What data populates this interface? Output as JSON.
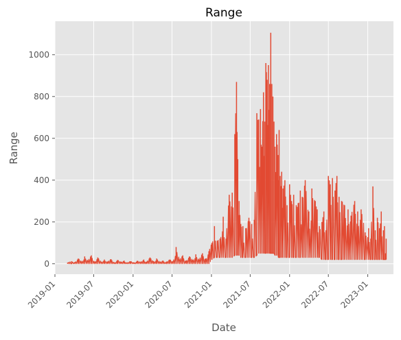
{
  "chart_data": {
    "type": "line",
    "title": "Range",
    "xlabel": "Date",
    "ylabel": "Range",
    "grid": true,
    "legend": "none",
    "style": "ggplot",
    "colors": {
      "background": "#E5E5E5",
      "grid": "#FFFFFF",
      "line": "#E24A33",
      "text": "#555555"
    },
    "xlim": [
      "2019-01-01",
      "2023-05-01"
    ],
    "ylim": [
      -50,
      1160
    ],
    "x_ticks": [
      "2019-01",
      "2019-07",
      "2020-01",
      "2020-07",
      "2021-01",
      "2021-07",
      "2022-01",
      "2022-07",
      "2023-01"
    ],
    "y_ticks": [
      0,
      200,
      400,
      600,
      800,
      1000
    ],
    "series": [
      {
        "x": [
          "2019-03-01",
          "2019-03-20",
          "2019-04-05",
          "2019-04-20",
          "2019-05-05",
          "2019-05-20",
          "2019-06-05",
          "2019-06-20",
          "2019-07-05",
          "2019-07-20",
          "2019-08-05",
          "2019-08-20",
          "2019-09-05",
          "2019-09-20",
          "2019-10-05",
          "2019-10-20",
          "2019-11-05",
          "2019-11-20",
          "2019-12-05",
          "2019-12-20",
          "2020-01-05",
          "2020-01-20",
          "2020-02-05",
          "2020-02-20",
          "2020-03-05",
          "2020-03-20",
          "2020-04-05",
          "2020-04-20",
          "2020-05-05",
          "2020-05-20",
          "2020-06-05",
          "2020-06-20",
          "2020-07-05",
          "2020-07-20",
          "2020-08-05",
          "2020-08-20",
          "2020-09-05",
          "2020-09-20",
          "2020-10-05",
          "2020-10-20",
          "2020-11-05",
          "2020-11-20",
          "2020-12-05",
          "2020-12-20",
          "2021-01-03",
          "2021-01-15",
          "2021-01-28",
          "2021-02-10",
          "2021-02-25",
          "2021-03-10",
          "2021-03-25",
          "2021-04-08",
          "2021-04-20",
          "2021-04-28",
          "2021-05-04",
          "2021-05-10",
          "2021-05-18",
          "2021-05-28",
          "2021-06-10",
          "2021-06-25",
          "2021-07-08",
          "2021-07-20",
          "2021-08-01",
          "2021-08-10",
          "2021-08-18",
          "2021-08-25",
          "2021-09-01",
          "2021-09-07",
          "2021-09-12",
          "2021-09-18",
          "2021-09-24",
          "2021-09-30",
          "2021-10-05",
          "2021-10-10",
          "2021-10-15",
          "2021-10-20",
          "2021-10-25",
          "2021-11-01",
          "2021-11-08",
          "2021-11-10",
          "2021-11-13",
          "2021-11-18",
          "2021-11-25",
          "2021-12-01",
          "2021-12-10",
          "2021-12-20",
          "2022-01-01",
          "2022-01-10",
          "2022-01-20",
          "2022-02-01",
          "2022-02-10",
          "2022-02-20",
          "2022-03-01",
          "2022-03-15",
          "2022-04-01",
          "2022-04-15",
          "2022-05-01",
          "2022-05-10",
          "2022-05-20",
          "2022-06-01",
          "2022-06-10",
          "2022-06-20",
          "2022-07-01",
          "2022-07-10",
          "2022-07-20",
          "2022-08-01",
          "2022-08-10",
          "2022-08-20",
          "2022-09-01",
          "2022-09-15",
          "2022-10-01",
          "2022-10-15",
          "2022-11-01",
          "2022-11-15",
          "2022-12-01",
          "2022-12-20",
          "2023-01-05",
          "2023-01-15",
          "2023-01-25",
          "2023-02-05",
          "2023-02-15",
          "2023-02-25",
          "2023-03-05",
          "2023-03-15",
          "2023-03-20",
          "2023-03-25",
          "2023-03-28"
        ],
        "y": [
          5,
          12,
          8,
          25,
          10,
          35,
          15,
          40,
          10,
          30,
          8,
          20,
          10,
          22,
          6,
          18,
          8,
          15,
          5,
          12,
          6,
          14,
          8,
          20,
          10,
          30,
          12,
          25,
          8,
          15,
          10,
          20,
          10,
          80,
          20,
          40,
          15,
          35,
          18,
          45,
          20,
          50,
          25,
          60,
          100,
          180,
          110,
          120,
          225,
          120,
          330,
          340,
          620,
          870,
          500,
          300,
          190,
          180,
          170,
          220,
          190,
          210,
          720,
          690,
          740,
          560,
          820,
          680,
          960,
          880,
          950,
          860,
          1105,
          860,
          800,
          680,
          560,
          620,
          520,
          400,
          640,
          420,
          440,
          360,
          400,
          280,
          380,
          300,
          330,
          280,
          290,
          350,
          320,
          400,
          250,
          360,
          300,
          260,
          180,
          200,
          250,
          160,
          420,
          380,
          410,
          350,
          420,
          320,
          300,
          280,
          260,
          230,
          300,
          250,
          260,
          150,
          170,
          120,
          370,
          160,
          220,
          170,
          250,
          160,
          180,
          50,
          120
        ],
        "y_low": [
          0,
          0,
          0,
          0,
          0,
          0,
          0,
          0,
          0,
          0,
          0,
          0,
          0,
          0,
          0,
          0,
          0,
          0,
          0,
          0,
          0,
          0,
          0,
          0,
          0,
          0,
          0,
          0,
          0,
          0,
          0,
          0,
          0,
          0,
          0,
          0,
          0,
          0,
          0,
          0,
          0,
          0,
          0,
          0,
          20,
          30,
          30,
          30,
          30,
          30,
          30,
          30,
          40,
          40,
          40,
          40,
          30,
          30,
          30,
          30,
          30,
          30,
          40,
          50,
          50,
          50,
          50,
          50,
          50,
          50,
          50,
          50,
          50,
          50,
          50,
          50,
          40,
          40,
          40,
          30,
          30,
          30,
          30,
          30,
          30,
          30,
          30,
          30,
          30,
          30,
          30,
          30,
          30,
          30,
          30,
          30,
          30,
          30,
          30,
          20,
          20,
          20,
          20,
          20,
          20,
          20,
          20,
          20,
          20,
          20,
          20,
          20,
          20,
          20,
          20,
          20,
          20,
          20,
          20,
          20,
          20,
          20,
          20,
          20,
          20,
          20,
          20
        ]
      }
    ]
  }
}
